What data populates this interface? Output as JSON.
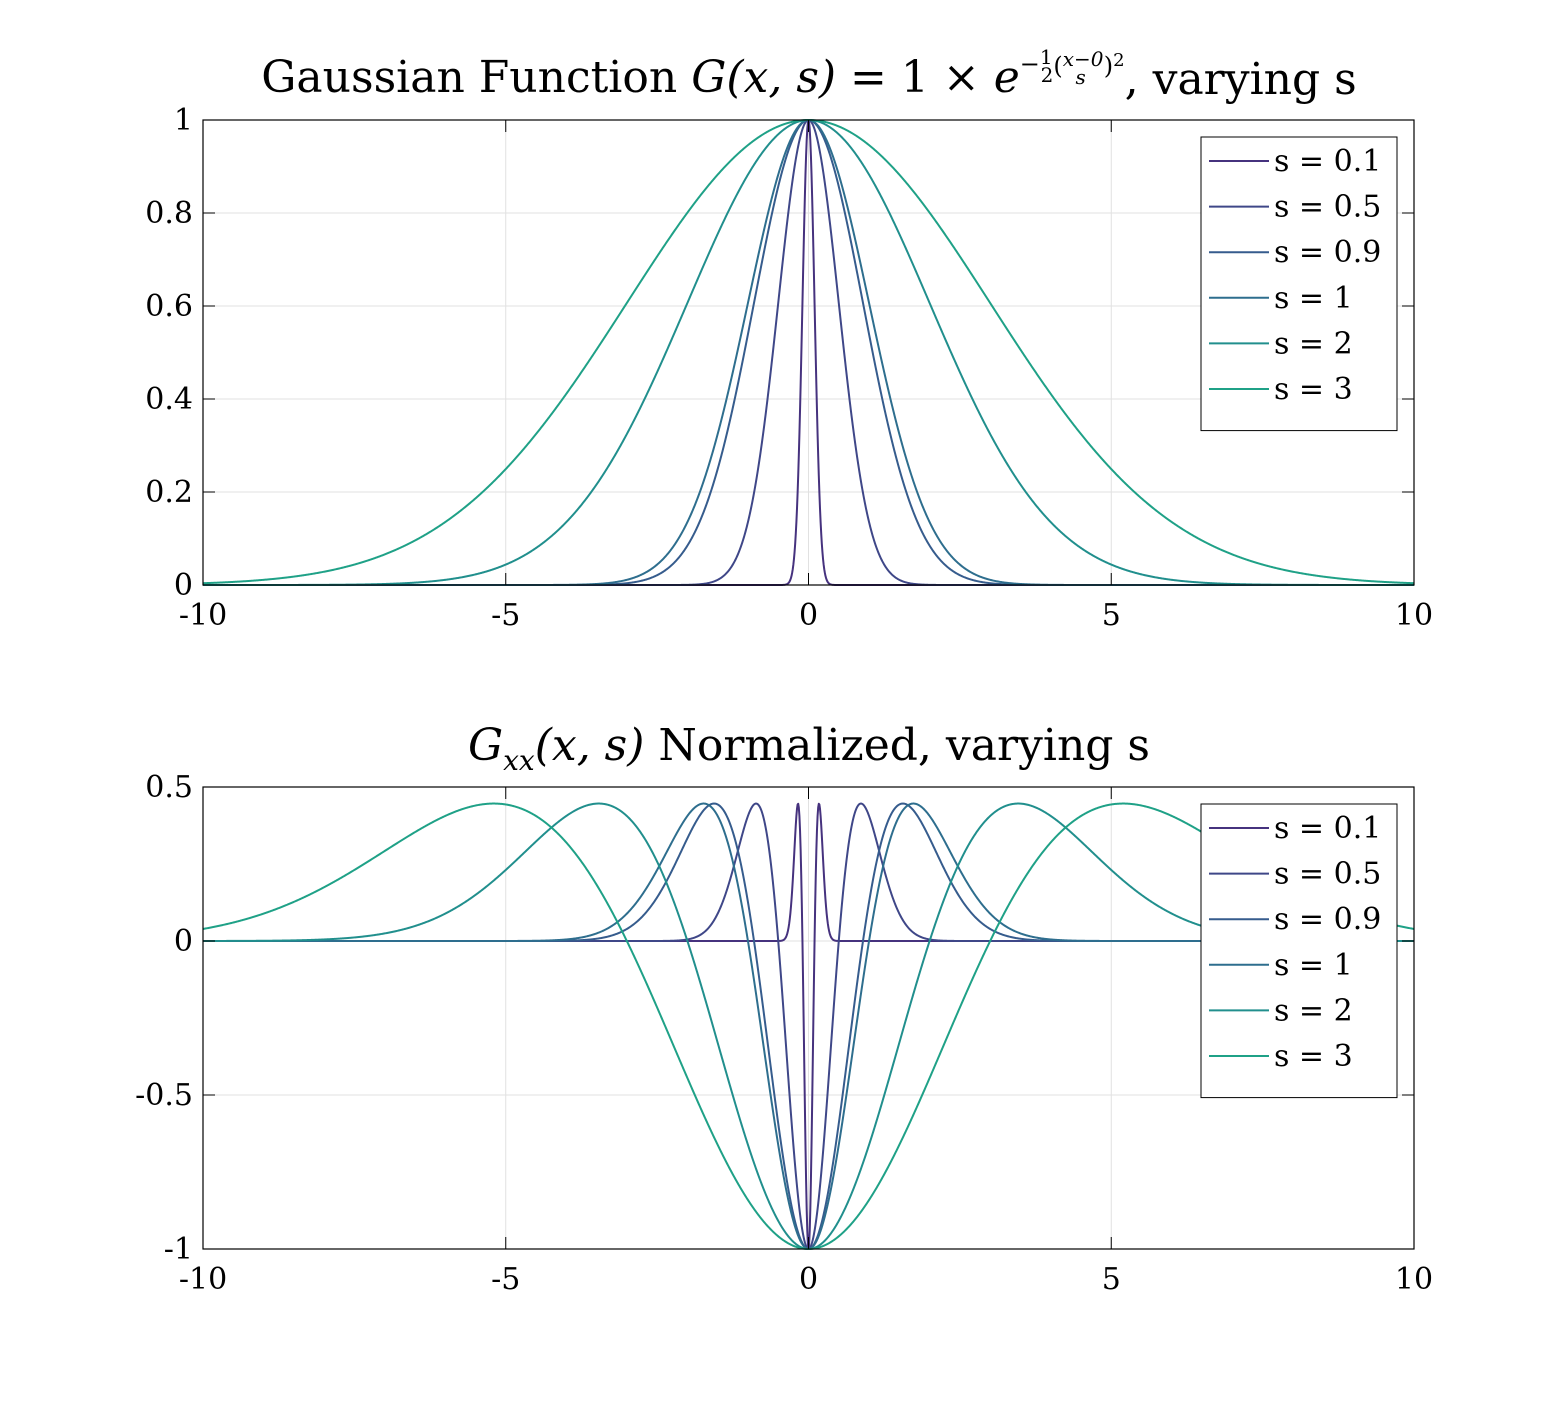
{
  "chart_data": [
    {
      "type": "line",
      "title_parts": {
        "prefix": "Gaussian Function ",
        "G": "G",
        "args": "(x, s)",
        "equals": " = 1 × ",
        "e": "e",
        "exp_minus": "−",
        "frac1_num": "1",
        "frac1_den": "2",
        "paren_open": "(",
        "frac2_num": "x−0",
        "frac2_den": "s",
        "paren_close": ")",
        "power": "2",
        "suffix": ", varying s"
      },
      "function": "gaussian",
      "xlim": [
        -10,
        10
      ],
      "ylim": [
        0,
        1
      ],
      "xticks": [
        -10,
        -5,
        0,
        5,
        10
      ],
      "yticks": [
        0,
        0.2,
        0.4,
        0.6,
        0.8,
        1
      ],
      "xtick_labels": [
        "-10",
        "-5",
        "0",
        "5",
        "10"
      ],
      "ytick_labels": [
        "0",
        "0.2",
        "0.4",
        "0.6",
        "0.8",
        "1"
      ],
      "grid": true,
      "legend_position": "top-right",
      "series": [
        {
          "name": "s = 0.1",
          "s": 0.1,
          "color": "#46327e"
        },
        {
          "name": "s = 0.5",
          "s": 0.5,
          "color": "#3f4788"
        },
        {
          "name": "s = 0.9",
          "s": 0.9,
          "color": "#365c8d"
        },
        {
          "name": "s = 1",
          "s": 1,
          "color": "#2e6e8e"
        },
        {
          "name": "s = 2",
          "s": 2,
          "color": "#218f8d"
        },
        {
          "name": "s = 3",
          "s": 3,
          "color": "#1fa187"
        }
      ]
    },
    {
      "type": "line",
      "title_parts": {
        "G": "G",
        "sub": "xx",
        "args": "(x, s)",
        "suffix": " Normalized, varying s"
      },
      "function": "gaussian_second_derivative_normalized",
      "xlim": [
        -10,
        10
      ],
      "ylim": [
        -1,
        0.5
      ],
      "xticks": [
        -10,
        -5,
        0,
        5,
        10
      ],
      "yticks": [
        -1,
        -0.5,
        0,
        0.5
      ],
      "xtick_labels": [
        "-10",
        "-5",
        "0",
        "5",
        "10"
      ],
      "ytick_labels": [
        "-1",
        "-0.5",
        "0",
        "0.5"
      ],
      "grid": true,
      "legend_position": "top-right",
      "series": [
        {
          "name": "s = 0.1",
          "s": 0.1,
          "color": "#46327e"
        },
        {
          "name": "s = 0.5",
          "s": 0.5,
          "color": "#3f4788"
        },
        {
          "name": "s = 0.9",
          "s": 0.9,
          "color": "#365c8d"
        },
        {
          "name": "s = 1",
          "s": 1,
          "color": "#2e6e8e"
        },
        {
          "name": "s = 2",
          "s": 2,
          "color": "#218f8d"
        },
        {
          "name": "s = 3",
          "s": 3,
          "color": "#1fa187"
        }
      ]
    }
  ]
}
